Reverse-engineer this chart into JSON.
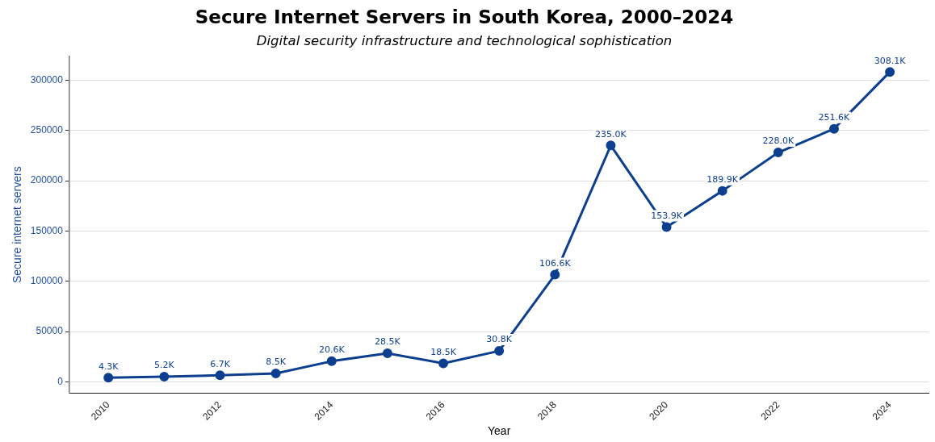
{
  "chart_data": {
    "type": "line",
    "title": "Secure Internet Servers in South Korea, 2000–2024",
    "subtitle": "Digital security infrastructure and technological sophistication",
    "xlabel": "Year",
    "ylabel": "Secure internet servers",
    "x": [
      2010,
      2011,
      2012,
      2013,
      2014,
      2015,
      2016,
      2017,
      2018,
      2019,
      2020,
      2021,
      2022,
      2023,
      2024
    ],
    "series": [
      {
        "color": "#0d3f8f",
        "values": [
          4300,
          5200,
          6700,
          8500,
          20600,
          28500,
          18500,
          30800,
          106600,
          235000,
          153900,
          189900,
          228000,
          251600,
          308100
        ],
        "value_labels": [
          "4.3K",
          "5.2K",
          "6.7K",
          "8.5K",
          "20.6K",
          "28.5K",
          "18.5K",
          "30.8K",
          "106.6K",
          "235.0K",
          "153.9K",
          "189.9K",
          "228.0K",
          "251.6K",
          "308.1K"
        ]
      }
    ],
    "xlim": [
      2009.3,
      2024.7
    ],
    "xticks": [
      2010,
      2012,
      2014,
      2016,
      2018,
      2020,
      2022,
      2024
    ],
    "ylim": [
      -10900,
      323300
    ],
    "yticks": [
      0,
      50000,
      100000,
      150000,
      200000,
      250000,
      300000
    ],
    "grid": "y",
    "legend": false,
    "marker": "circle",
    "line_style": "solid"
  }
}
